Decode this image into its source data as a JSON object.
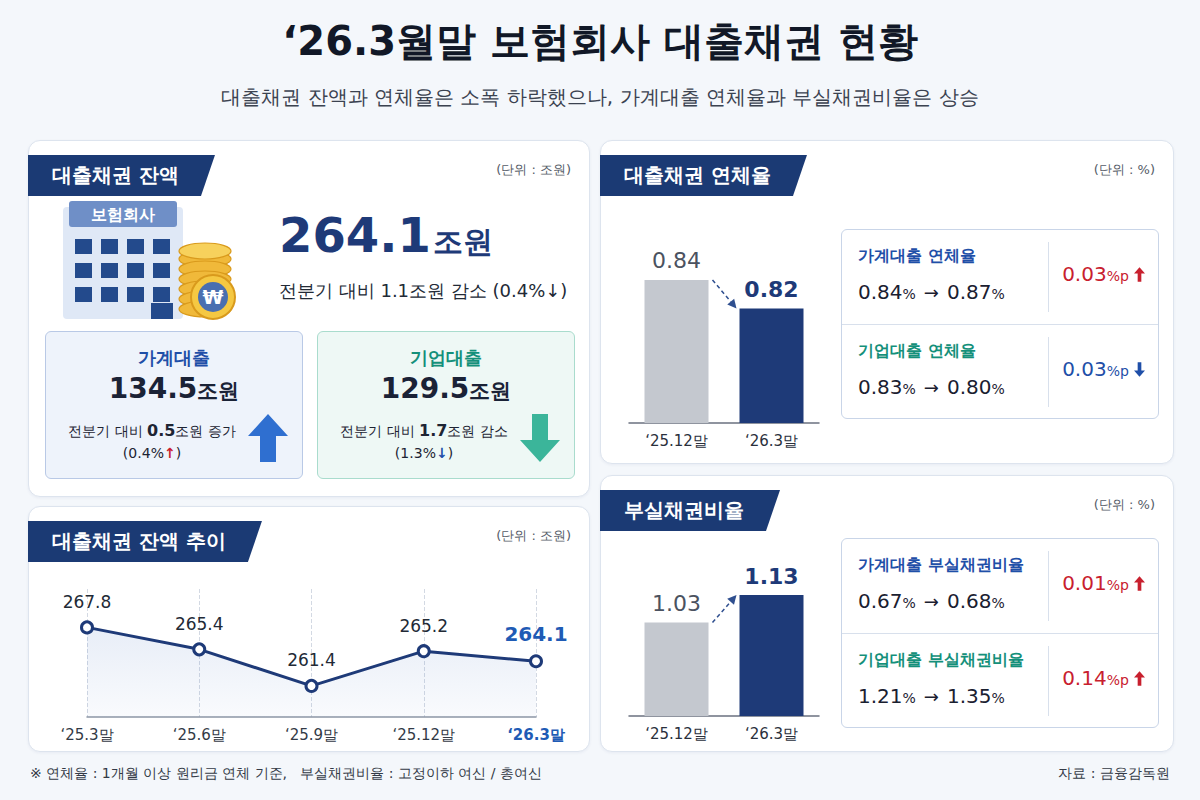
{
  "header": {
    "title": "‘26.3월말 보험회사 대출채권 현황",
    "subtitle": "대출채권 잔액과 연체율은 소폭 하락했으나, 가계대출 연체율과 부실채권비율은 상승"
  },
  "balance": {
    "title": "대출채권 잔액",
    "unit_note": "(단위 : 조원)",
    "icon_label": "보험회사",
    "coin_symbol": "₩",
    "total": {
      "value": 264.1,
      "unit": "조원",
      "change": "전분기 대비 1.1조원 감소 (0.4%↓)"
    },
    "items": [
      {
        "name": "가계대출",
        "value": 134.5,
        "unit": "조원",
        "change": "전분기 대비 0.5조원 증가",
        "rate": "(0.4%↑)",
        "direction": "up"
      },
      {
        "name": "기업대출",
        "value": 129.5,
        "unit": "조원",
        "change": "전분기 대비 1.7조원 감소",
        "rate": "(1.3%↓)",
        "direction": "down"
      }
    ]
  },
  "chart_data": [
    {
      "type": "line",
      "title": "대출채권 잔액 추이",
      "subtitle": "(단위 : 조원)",
      "categories": [
        "‘25.3말",
        "‘25.6말",
        "‘25.9말",
        "‘25.12말",
        "‘26.3말"
      ],
      "values": [
        267.8,
        265.4,
        261.4,
        265.2,
        264.1
      ],
      "color": "#1e3a78",
      "ylim": [
        258,
        272
      ],
      "data_labels": true,
      "tick_labels": "x",
      "grid": true,
      "marker": "circle"
    },
    {
      "type": "bar",
      "title": "대출채권 연체율",
      "subtitle": "(단위 : %)",
      "categories": [
        "‘25.12말",
        "‘26.3말"
      ],
      "values": [
        0.84,
        0.82
      ],
      "colors": [
        "#c4c8cf",
        "#1e3a78"
      ],
      "ylim": [
        0.74,
        0.87
      ],
      "data_labels": true,
      "tick_labels": "x"
    },
    {
      "type": "bar",
      "title": "부실채권비율",
      "subtitle": "(단위 : %)",
      "categories": [
        "‘25.12말",
        "‘26.3말"
      ],
      "values": [
        1.03,
        1.13
      ],
      "colors": [
        "#c4c8cf",
        "#1e3a78"
      ],
      "ylim": [
        0.69,
        1.25
      ],
      "data_labels": true,
      "tick_labels": "x"
    }
  ],
  "delinquency_details": {
    "separator": "→",
    "rows": [
      {
        "label": "가계대출 연체율",
        "from": "0.84",
        "to": "0.87",
        "unit": "%",
        "change": "0.03",
        "change_unit": "%p",
        "direction": "up"
      },
      {
        "label": "기업대출 연체율",
        "from": "0.83",
        "to": "0.80",
        "unit": "%",
        "change": "0.03",
        "change_unit": "%p",
        "direction": "down"
      }
    ]
  },
  "npl_details": {
    "separator": "→",
    "rows": [
      {
        "label": "가계대출 부실채권비율",
        "from": "0.67",
        "to": "0.68",
        "unit": "%",
        "change": "0.01",
        "change_unit": "%p",
        "direction": "up"
      },
      {
        "label": "기업대출 부실채권비율",
        "from": "1.21",
        "to": "1.35",
        "unit": "%",
        "change": "0.14",
        "change_unit": "%p",
        "direction": "up"
      }
    ]
  },
  "footer": {
    "note": "※ 연체율 : 1개월 이상 원리금 연체 기준,   부실채권비율 : 고정이하 여신 / 총여신",
    "source": "자료 : 금융감독원"
  }
}
